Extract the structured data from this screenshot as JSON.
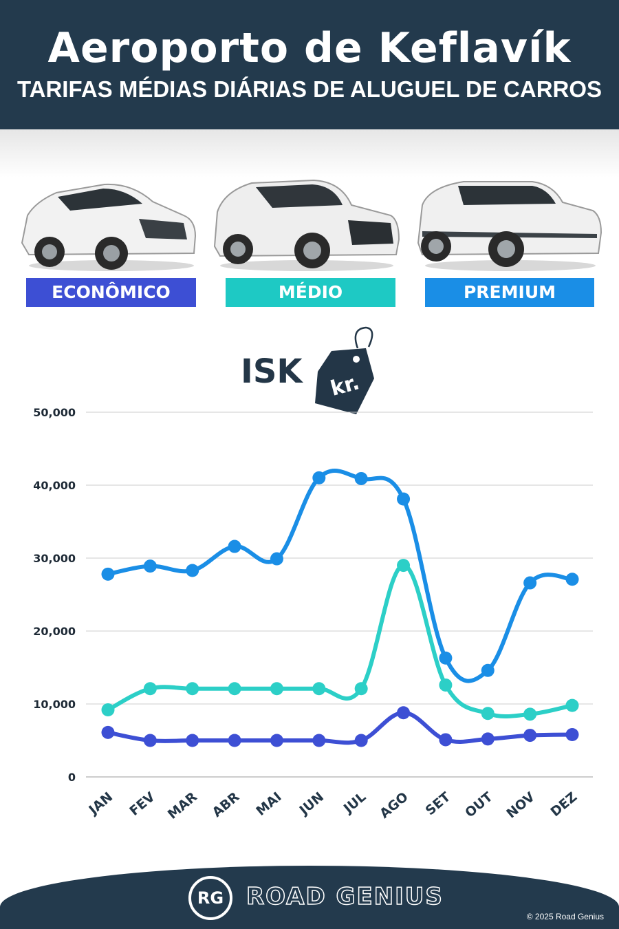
{
  "header": {
    "title": "Aeroporto de Keflavík",
    "subtitle": "TARIFAS MÉDIAS DIÁRIAS DE ALUGUEL DE CARROS"
  },
  "categories": [
    {
      "label": "ECONÔMICO",
      "color": "#3d4fd4"
    },
    {
      "label": "MÉDIO",
      "color": "#1ec9c4"
    },
    {
      "label": "PREMIUM",
      "color": "#1a8ee6"
    }
  ],
  "currency": {
    "label": "ISK",
    "tag": "kr."
  },
  "chart_data": {
    "type": "line",
    "categories": [
      "JAN",
      "FEV",
      "MAR",
      "ABR",
      "MAI",
      "JUN",
      "JUL",
      "AGO",
      "SET",
      "OUT",
      "NOV",
      "DEZ"
    ],
    "ylim": [
      0,
      50000
    ],
    "yticks": [
      "0",
      "10,000",
      "20,000",
      "30,000",
      "40,000",
      "50,000"
    ],
    "grid": true,
    "series": [
      {
        "name": "PREMIUM",
        "color": "#1a8ee6",
        "values": [
          27800,
          28900,
          28300,
          31600,
          29900,
          41000,
          40900,
          38100,
          16300,
          14600,
          26600,
          27100
        ]
      },
      {
        "name": "MÉDIO",
        "color": "#2ccfc7",
        "values": [
          9200,
          12100,
          12100,
          12100,
          12100,
          12100,
          12100,
          29000,
          12600,
          8700,
          8600,
          9800
        ]
      },
      {
        "name": "ECONÔMICO",
        "color": "#3d4fd4",
        "values": [
          6100,
          5000,
          5000,
          5000,
          5000,
          5000,
          5000,
          8800,
          5100,
          5200,
          5700,
          5800
        ]
      }
    ]
  },
  "footer": {
    "logo_mark": "RG",
    "brand": "ROAD GENIUS",
    "copyright": "© 2025 Road Genius"
  }
}
